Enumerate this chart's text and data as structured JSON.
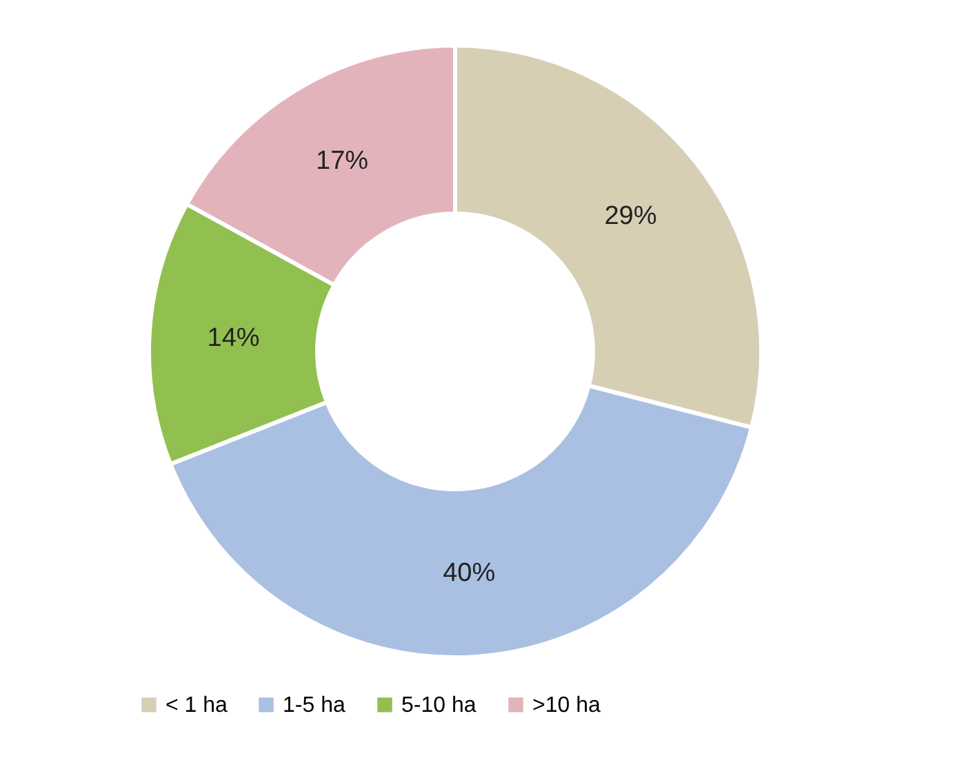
{
  "chart_data": {
    "type": "donut",
    "categories": [
      "< 1 ha",
      "1-5 ha",
      "5-10 ha",
      ">10 ha"
    ],
    "values": [
      29,
      40,
      14,
      17
    ],
    "colors": [
      "#d6cfb4",
      "#a9c0e2",
      "#92c050",
      "#e3b3bb"
    ],
    "value_labels": [
      "29%",
      "40%",
      "14%",
      "17%"
    ],
    "legend": "bottom"
  }
}
